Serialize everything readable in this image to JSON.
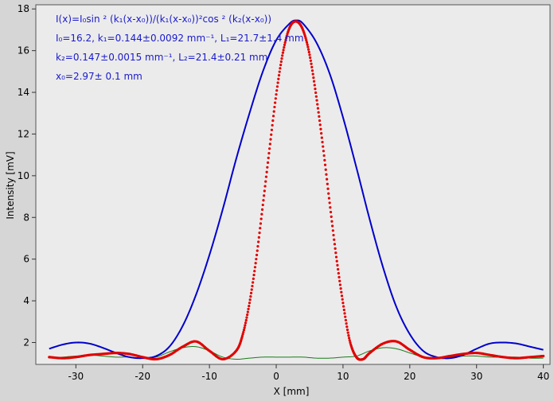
{
  "chart_data": {
    "type": "line",
    "xlabel": "X [mm]",
    "ylabel": "Intensity [mV]",
    "xlim": [
      -36,
      41
    ],
    "ylim": [
      0.95,
      18.2
    ],
    "x_ticks": [
      -30,
      -20,
      -10,
      0,
      10,
      20,
      30,
      40
    ],
    "y_ticks": [
      2,
      4,
      6,
      8,
      10,
      12,
      14,
      16,
      18
    ],
    "x_tick_labels": [
      "-30",
      "-20",
      "-10",
      "0",
      "10",
      "20",
      "30",
      "40"
    ],
    "y_tick_labels": [
      "2",
      "4",
      "6",
      "8",
      "10",
      "12",
      "14",
      "16",
      "18"
    ],
    "grid": false,
    "annotations": [
      "I(x)=I₀sin ² (k₁(x-x₀))/(k₁(x-x₀))²cos ² (k₂(x-x₀))",
      "I₀=16.2,  k₁=0.144±0.0092 mm⁻¹,   L₁=21.7±1.4 mm",
      "k₂=0.147±0.0015 mm⁻¹,   L₂=21.4±0.21 mm",
      "x₀=2.97±  0.1 mm"
    ],
    "series": [
      {
        "style": "solid-line",
        "color": "#0000cc",
        "x": [
          -34,
          -32,
          -30,
          -28,
          -26,
          -24,
          -22,
          -20,
          -18,
          -16,
          -14,
          -12,
          -10,
          -8,
          -6,
          -4,
          -2,
          0,
          2,
          3,
          4,
          6,
          8,
          10,
          12,
          14,
          16,
          18,
          20,
          22,
          24,
          26,
          28,
          30,
          32,
          34,
          36,
          38,
          40
        ],
        "y": [
          1.7,
          1.9,
          2.0,
          1.95,
          1.75,
          1.5,
          1.3,
          1.25,
          1.35,
          1.8,
          2.8,
          4.3,
          6.2,
          8.4,
          10.8,
          13.0,
          15.0,
          16.5,
          17.3,
          17.45,
          17.3,
          16.4,
          14.9,
          12.8,
          10.4,
          7.9,
          5.6,
          3.7,
          2.4,
          1.6,
          1.3,
          1.25,
          1.4,
          1.7,
          1.95,
          2.0,
          1.95,
          1.8,
          1.65
        ]
      },
      {
        "style": "dots",
        "color": "#e00000",
        "x": [
          -34,
          -32,
          -30,
          -28,
          -26,
          -24,
          -22,
          -20,
          -18,
          -16,
          -14,
          -12,
          -10,
          -8,
          -6,
          -5,
          -4,
          -3,
          -2,
          -1,
          0,
          1,
          2,
          3,
          4,
          5,
          6,
          7,
          8,
          9,
          10,
          11,
          12,
          13,
          14,
          16,
          18,
          20,
          22,
          24,
          26,
          28,
          30,
          32,
          34,
          36,
          38,
          40
        ],
        "y": [
          1.3,
          1.25,
          1.3,
          1.4,
          1.45,
          1.5,
          1.45,
          1.3,
          1.2,
          1.4,
          1.8,
          2.05,
          1.6,
          1.2,
          1.6,
          2.4,
          3.9,
          6.0,
          8.6,
          11.3,
          13.9,
          15.9,
          17.1,
          17.4,
          17.0,
          15.8,
          13.8,
          11.4,
          8.7,
          6.1,
          3.9,
          2.1,
          1.3,
          1.2,
          1.5,
          1.95,
          2.05,
          1.65,
          1.3,
          1.25,
          1.35,
          1.45,
          1.5,
          1.4,
          1.3,
          1.25,
          1.3,
          1.35
        ]
      },
      {
        "style": "thin-line",
        "color": "#1a7a1a",
        "x": [
          -34,
          -32,
          -30,
          -28,
          -26,
          -24,
          -22,
          -20,
          -18,
          -16,
          -14,
          -12,
          -10,
          -8,
          -6,
          -4,
          -2,
          0,
          2,
          4,
          6,
          8,
          10,
          12,
          14,
          16,
          18,
          20,
          22,
          24,
          26,
          28,
          30,
          32,
          34,
          36,
          38,
          40
        ],
        "y": [
          1.25,
          1.3,
          1.35,
          1.4,
          1.35,
          1.3,
          1.3,
          1.25,
          1.3,
          1.55,
          1.75,
          1.8,
          1.6,
          1.3,
          1.2,
          1.25,
          1.3,
          1.3,
          1.3,
          1.3,
          1.25,
          1.25,
          1.3,
          1.35,
          1.6,
          1.75,
          1.7,
          1.5,
          1.3,
          1.25,
          1.3,
          1.35,
          1.35,
          1.3,
          1.3,
          1.3,
          1.25,
          1.25
        ]
      }
    ]
  }
}
